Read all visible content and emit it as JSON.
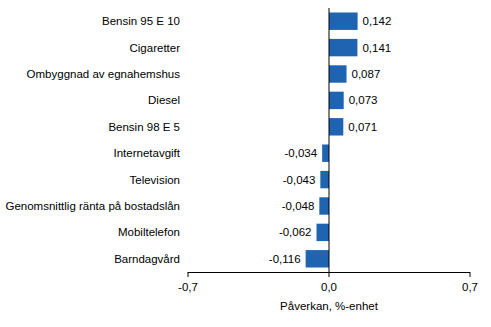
{
  "chart_data": {
    "type": "bar",
    "orientation": "horizontal",
    "categories": [
      "Bensin 95 E 10",
      "Cigaretter",
      "Ombyggnad av egnahemshus",
      "Diesel",
      "Bensin 98 E 5",
      "Internetavgift",
      "Television",
      "Genomsnittlig ränta på bostadslån",
      "Mobiltelefon",
      "Barndagvård"
    ],
    "values": [
      0.142,
      0.141,
      0.087,
      0.073,
      0.071,
      -0.034,
      -0.043,
      -0.048,
      -0.062,
      -0.116
    ],
    "value_labels": [
      "0,142",
      "0,141",
      "0,087",
      "0,073",
      "0,071",
      "-0,034",
      "-0,043",
      "-0,048",
      "-0,062",
      "-0,116"
    ],
    "data_labels": true,
    "color": "#1f64b0",
    "x_label": "Påverkan, %-enhet",
    "xlim": [
      -0.7,
      0.7
    ],
    "xticks": [
      {
        "value": -0.7,
        "label": "-0,7"
      },
      {
        "value": 0.0,
        "label": "0,0"
      },
      {
        "value": 0.7,
        "label": "0,7"
      }
    ],
    "grid": false
  }
}
